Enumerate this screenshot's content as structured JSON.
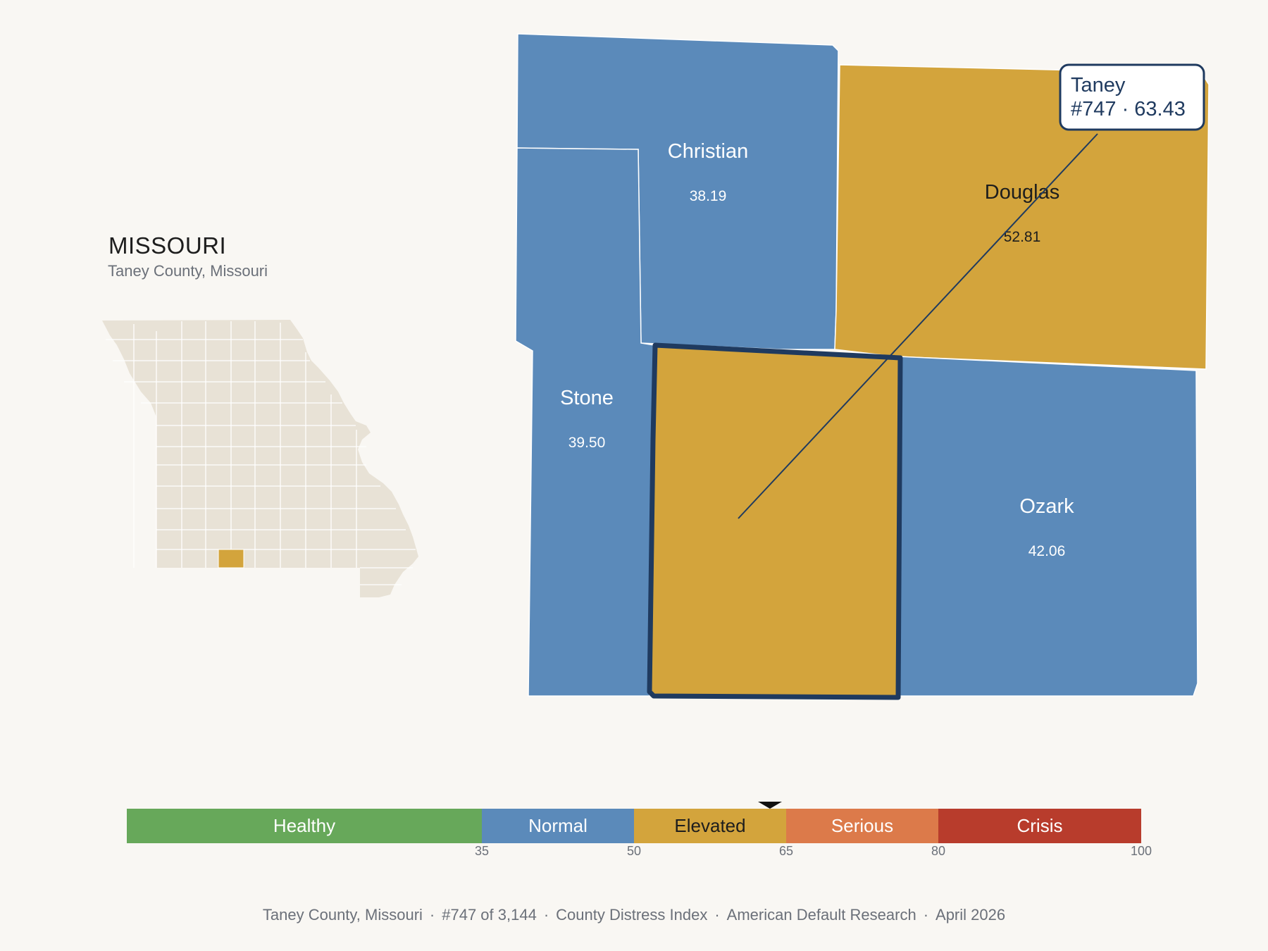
{
  "state": {
    "title": "MISSOURI",
    "subtitle": "Taney County, Missouri"
  },
  "counties": {
    "christian": {
      "name": "Christian",
      "value": "38.19",
      "color": "#5b8aba"
    },
    "douglas": {
      "name": "Douglas",
      "value": "52.81",
      "color": "#d3a43c"
    },
    "stone": {
      "name": "Stone",
      "value": "39.50",
      "color": "#5b8aba"
    },
    "ozark": {
      "name": "Ozark",
      "value": "42.06",
      "color": "#5b8aba"
    },
    "taney": {
      "name": "Taney",
      "value": "63.43",
      "color": "#d3a43c",
      "highlighted": true
    }
  },
  "callout": {
    "line1": "Taney",
    "line2": "#747 · 63.43"
  },
  "legend": {
    "min": 0,
    "max": 100,
    "marker_value": 63.43,
    "segments": [
      {
        "label": "Healthy",
        "from": 0,
        "to": 35,
        "color": "#67a85a"
      },
      {
        "label": "Normal",
        "from": 35,
        "to": 50,
        "color": "#5b8aba"
      },
      {
        "label": "Elevated",
        "from": 50,
        "to": 65,
        "color": "#d3a43c"
      },
      {
        "label": "Serious",
        "from": 65,
        "to": 80,
        "color": "#dc7a4a"
      },
      {
        "label": "Crisis",
        "from": 80,
        "to": 100,
        "color": "#b83c2c"
      }
    ],
    "ticks": [
      "35",
      "50",
      "65",
      "80",
      "100"
    ]
  },
  "footer": {
    "location": "Taney County, Missouri",
    "rank": "#747 of 3,144",
    "index": "County Distress Index",
    "source": "American Default Research",
    "date": "April 2026"
  },
  "colors": {
    "background": "#f9f7f3",
    "state_fill": "#e8e2d6",
    "highlight_outline": "#1f3a5f"
  }
}
